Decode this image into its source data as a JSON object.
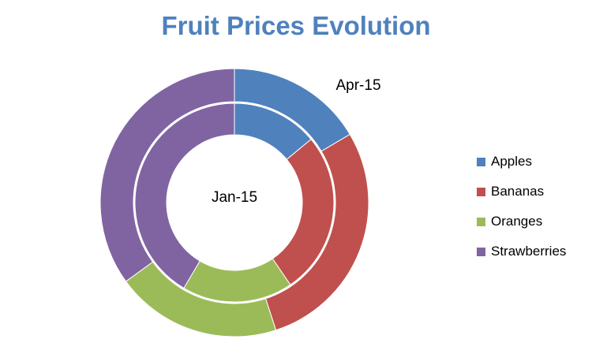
{
  "chart_data": {
    "type": "donut",
    "title": "Fruit Prices Evolution",
    "categories": [
      "Apples",
      "Bananas",
      "Oranges",
      "Strawberries"
    ],
    "colors": [
      "#4F81BD",
      "#C0504D",
      "#9BBB59",
      "#8064A2"
    ],
    "series": [
      {
        "name": "Jan-15",
        "ring": "inner",
        "values": [
          14.0,
          26.5,
          18.0,
          41.5
        ]
      },
      {
        "name": "Apr-15",
        "ring": "outer",
        "values": [
          16.5,
          28.5,
          20.0,
          35.0
        ]
      }
    ],
    "legend_position": "right"
  }
}
